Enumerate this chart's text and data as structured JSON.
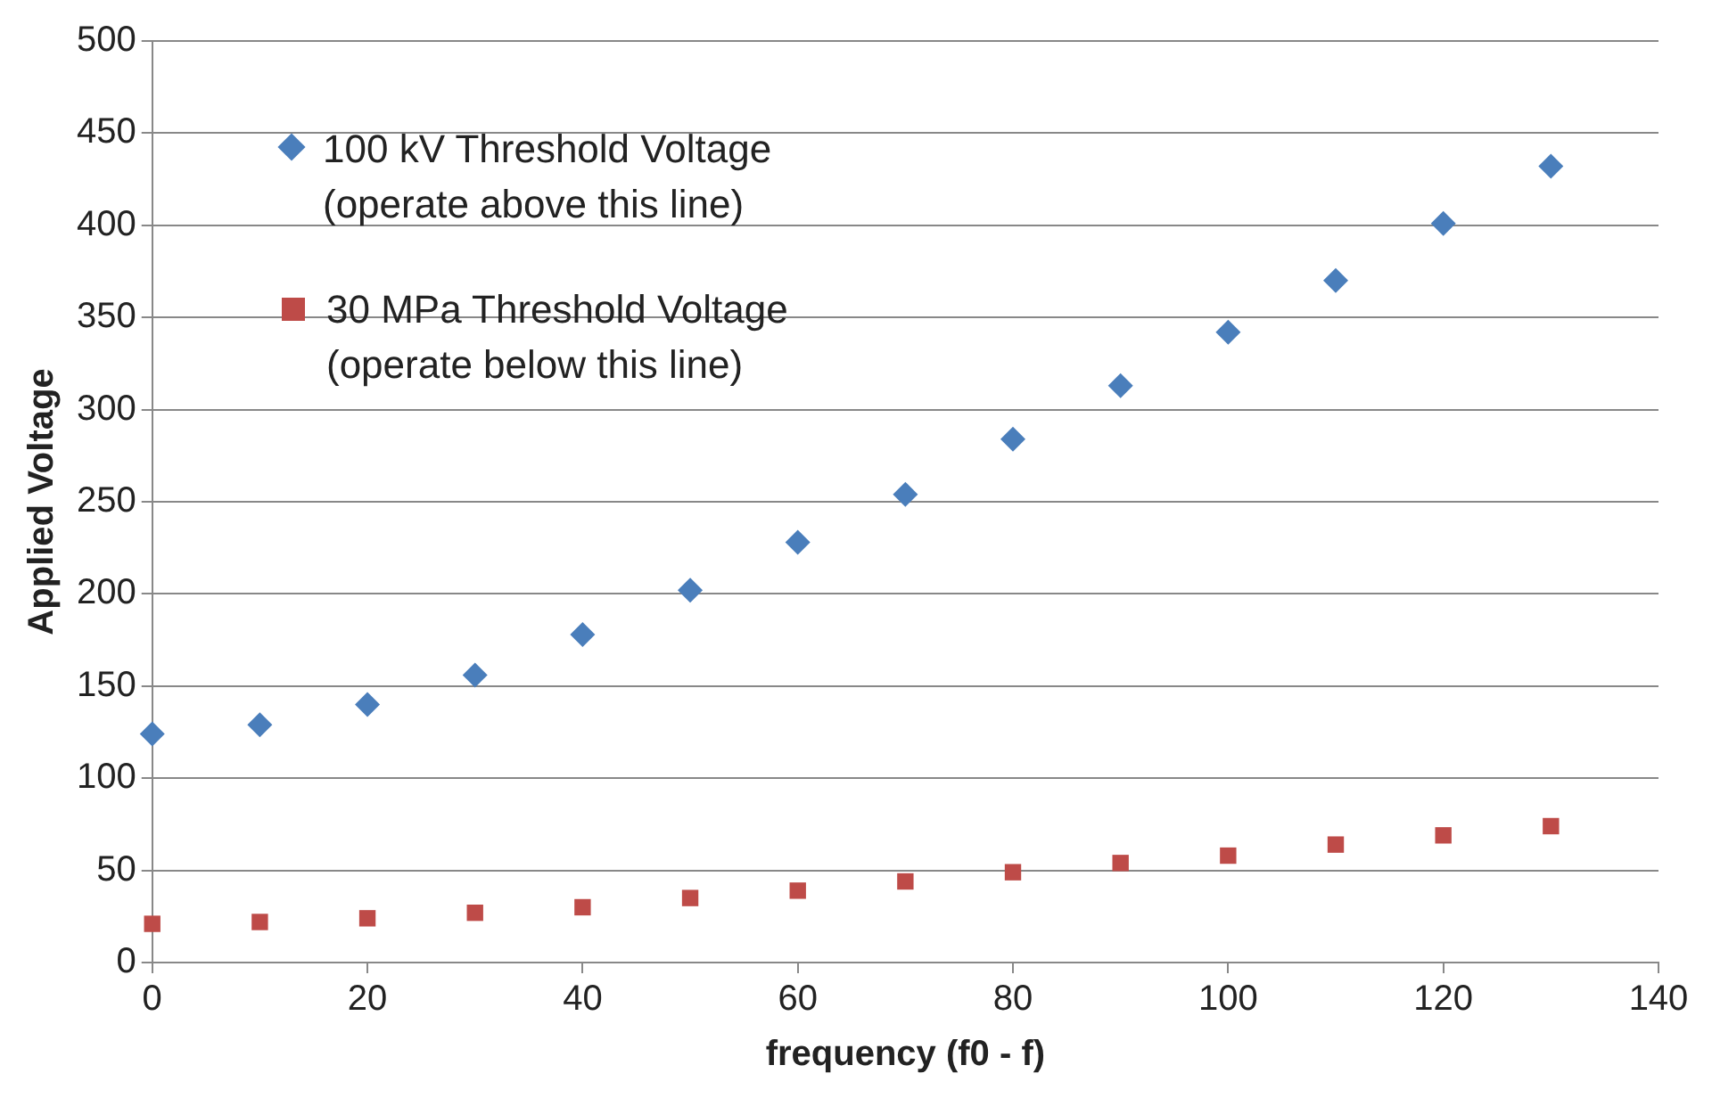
{
  "chart_data": {
    "type": "scatter",
    "xlabel": "frequency (f0 - f)",
    "ylabel": "Applied Voltage",
    "x": [
      0,
      10,
      20,
      30,
      40,
      50,
      60,
      70,
      80,
      90,
      100,
      110,
      120,
      130
    ],
    "series": [
      {
        "name": "100 kV Threshold Voltage\n(operate above this line)",
        "color": "#4a7ebb",
        "marker": "diamond",
        "values": [
          124,
          129,
          140,
          156,
          178,
          202,
          228,
          254,
          284,
          313,
          342,
          370,
          401,
          432
        ]
      },
      {
        "name": "30 MPa Threshold Voltage\n(operate below this line)",
        "color": "#be4b48",
        "marker": "square",
        "values": [
          21,
          22,
          24,
          27,
          30,
          35,
          39,
          44,
          49,
          54,
          58,
          64,
          69,
          74
        ]
      }
    ],
    "xlim": [
      0,
      140
    ],
    "xticks": [
      0,
      20,
      40,
      60,
      80,
      100,
      120,
      140
    ],
    "ylim": [
      0,
      500
    ],
    "yticks": [
      0,
      50,
      100,
      150,
      200,
      250,
      300,
      350,
      400,
      450,
      500
    ],
    "grid": "y",
    "legend": "top left"
  }
}
